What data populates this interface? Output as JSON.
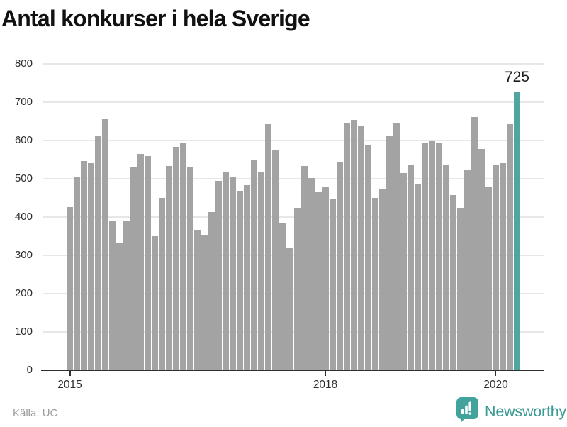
{
  "title": "Antal konkurser i hela Sverige",
  "chart_data": {
    "type": "bar",
    "title": "Antal konkurser i hela Sverige",
    "description": "Monthly bars from January 2015 through April 2020",
    "values": [
      425,
      505,
      545,
      540,
      610,
      655,
      388,
      333,
      390,
      530,
      563,
      558,
      350,
      449,
      533,
      582,
      592,
      529,
      366,
      351,
      412,
      494,
      516,
      503,
      467,
      483,
      550,
      516,
      642,
      573,
      385,
      320,
      424,
      533,
      501,
      466,
      478,
      446,
      542,
      646,
      652,
      638,
      587,
      449,
      473,
      611,
      643,
      514,
      535,
      485,
      592,
      597,
      594,
      537,
      456,
      424,
      521,
      660,
      577,
      479,
      537,
      540,
      642,
      725
    ],
    "ylim": [
      0,
      800
    ],
    "yticks": [
      0,
      100,
      200,
      300,
      400,
      500,
      600,
      700,
      800
    ],
    "xticks": [
      {
        "label": "2015",
        "index": 0
      },
      {
        "label": "2018",
        "index": 36
      },
      {
        "label": "2020",
        "index": 60
      }
    ],
    "grid": "horizontal",
    "bar_color": "#a3a3a3",
    "highlight": {
      "index": 63,
      "value": 725,
      "label": "725",
      "color": "#4fa69f"
    }
  },
  "footer": {
    "source": "Källa: UC",
    "brand": "Newsworthy",
    "brand_color": "#3b9a93",
    "icon_color": "#42a39c"
  }
}
